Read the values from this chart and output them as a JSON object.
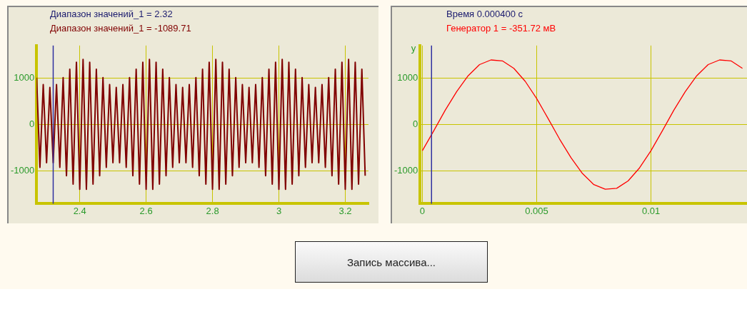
{
  "chart_data": [
    {
      "type": "line",
      "title": "Диапазон значений_1 = 2.32",
      "subtitle": "Диапазон значений_1 = -1089.71",
      "x": [
        2.27,
        2.28,
        2.29,
        2.3,
        2.31,
        2.32,
        2.33,
        2.34,
        2.35,
        2.36,
        2.37,
        2.38,
        2.39,
        2.4,
        2.41,
        2.42,
        2.43,
        2.44,
        2.45,
        2.46,
        2.47,
        2.48,
        2.49,
        2.5,
        2.51,
        2.52,
        2.53,
        2.54,
        2.55,
        2.56,
        2.57,
        2.58,
        2.59,
        2.6,
        2.61,
        2.62,
        2.63,
        2.64,
        2.65,
        2.66,
        2.67,
        2.68,
        2.69,
        2.7,
        2.71,
        2.72,
        2.73,
        2.74,
        2.75,
        2.76,
        2.77,
        2.78,
        2.79,
        2.8,
        2.81,
        2.82,
        2.83,
        2.84,
        2.85,
        2.86,
        2.87,
        2.88,
        2.89,
        2.9,
        2.91,
        2.92,
        2.93,
        2.94,
        2.95,
        2.96,
        2.97,
        2.98,
        2.99,
        3,
        3.01,
        3.02,
        3.03,
        3.04,
        3.05,
        3.06,
        3.07,
        3.08,
        3.09,
        3.1,
        3.11,
        3.12,
        3.13,
        3.14,
        3.15,
        3.16,
        3.17,
        3.18,
        3.19,
        3.2,
        3.21,
        3.22,
        3.23,
        3.24,
        3.25,
        3.26
      ],
      "series": [
        {
          "color": "#800000",
          "values": [
            1010,
            -920,
            860,
            -820,
            800,
            -820,
            860,
            -920,
            1010,
            -1100,
            1190,
            -1280,
            1340,
            -1390,
            1400,
            -1390,
            1340,
            -1280,
            1190,
            -1100,
            1010,
            -920,
            860,
            -820,
            800,
            -820,
            860,
            -920,
            1010,
            -1100,
            1190,
            -1280,
            1340,
            -1390,
            1400,
            -1390,
            1340,
            -1280,
            1190,
            -1100,
            1010,
            -920,
            860,
            -820,
            800,
            -820,
            860,
            -920,
            1010,
            -1100,
            1190,
            -1280,
            1340,
            -1390,
            1400,
            -1390,
            1340,
            -1280,
            1190,
            -1100,
            1010,
            -920,
            860,
            -820,
            800,
            -820,
            860,
            -920,
            1010,
            -1100,
            1190,
            -1280,
            1340,
            -1390,
            1400,
            -1390,
            1340,
            -1280,
            1190,
            -1100,
            1010,
            -920,
            860,
            -820,
            800,
            -820,
            860,
            -920,
            1010,
            -1100,
            1190,
            -1280,
            1340,
            -1390,
            1400,
            -1390,
            1340,
            -1280,
            1190,
            -1100
          ]
        }
      ],
      "xlim": [
        2.27,
        3.27
      ],
      "ylim": [
        -1700,
        1700
      ],
      "xticks": [
        2.4,
        2.6,
        2.8,
        3,
        3.2
      ],
      "yticks": [
        -1000,
        0,
        1000
      ],
      "grid": true,
      "ref_lines": [
        {
          "axis": "x",
          "value": 2.32,
          "color": "#3030a0"
        }
      ]
    },
    {
      "type": "line",
      "title": "Время 0.000400 с",
      "subtitle": "Генератор 1 = -351.72 мВ",
      "ylabel": "y",
      "x": [
        0,
        0.0005,
        0.001,
        0.0015,
        0.002,
        0.0025,
        0.003,
        0.0035,
        0.004,
        0.0045,
        0.005,
        0.0055,
        0.006,
        0.0065,
        0.007,
        0.0075,
        0.008,
        0.0085,
        0.009,
        0.0095,
        0.01,
        0.0105,
        0.011,
        0.0115,
        0.012,
        0.0125,
        0.013,
        0.0135,
        0.014
      ],
      "series": [
        {
          "color": "#ff0000",
          "values": [
            -560,
            -130,
            310,
            710,
            1050,
            1290,
            1390,
            1370,
            1210,
            930,
            560,
            130,
            -310,
            -710,
            -1050,
            -1290,
            -1390,
            -1370,
            -1210,
            -930,
            -560,
            -130,
            310,
            710,
            1050,
            1290,
            1390,
            1370,
            1210
          ]
        }
      ],
      "xlim": [
        -0.0001,
        0.0142
      ],
      "ylim": [
        -1700,
        1700
      ],
      "xticks": [
        0,
        0.005,
        0.01
      ],
      "yticks": [
        -1000,
        0,
        1000
      ],
      "grid": true,
      "ref_lines": [
        {
          "axis": "x",
          "value": 0.0004,
          "color": "#3030a0"
        }
      ]
    },
    {
      "type": "other",
      "annotations": [
        "Запись массива..."
      ]
    }
  ]
}
